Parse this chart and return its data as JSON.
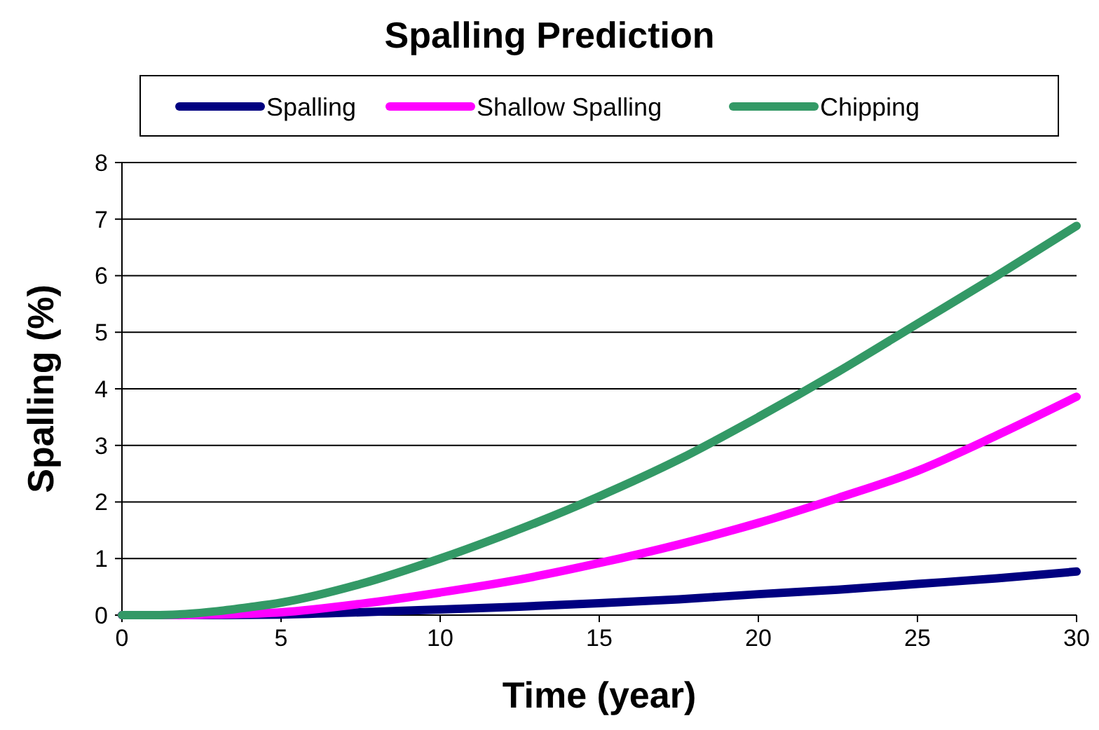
{
  "chart_data": {
    "type": "line",
    "title": "Spalling Prediction",
    "xlabel": "Time (year)",
    "ylabel": "Spalling (%)",
    "xlim": [
      0,
      30
    ],
    "xticks": [
      0,
      5,
      10,
      15,
      20,
      25,
      30
    ],
    "ylim": [
      0,
      8
    ],
    "yticks": [
      0,
      1,
      2,
      3,
      4,
      5,
      6,
      7,
      8
    ],
    "grid": "y",
    "legend": "top",
    "line_style": "solid",
    "series": [
      {
        "name": "Spalling",
        "color": "#000080",
        "x": [
          0,
          3,
          5,
          7.5,
          10,
          12.5,
          15,
          17.5,
          20,
          22.5,
          25,
          27.5,
          30
        ],
        "values": [
          0,
          0,
          0.01,
          0.05,
          0.1,
          0.15,
          0.21,
          0.28,
          0.37,
          0.45,
          0.55,
          0.65,
          0.77
        ]
      },
      {
        "name": "Shallow Spalling",
        "color": "#ff00ff",
        "x": [
          0,
          2,
          3,
          5,
          7.5,
          10,
          12.5,
          15,
          17.5,
          20,
          22.5,
          25,
          27.5,
          30
        ],
        "values": [
          0,
          0,
          0.01,
          0.05,
          0.2,
          0.4,
          0.63,
          0.92,
          1.25,
          1.63,
          2.07,
          2.55,
          3.18,
          3.86
        ]
      },
      {
        "name": "Chipping",
        "color": "#339966",
        "x": [
          0,
          1,
          2,
          3,
          4,
          5,
          7.5,
          10,
          12.5,
          15,
          17.5,
          20,
          22.5,
          25,
          27.5,
          30
        ],
        "values": [
          0,
          0,
          0.02,
          0.07,
          0.14,
          0.22,
          0.55,
          1.0,
          1.52,
          2.1,
          2.75,
          3.5,
          4.3,
          5.15,
          6.0,
          6.88
        ]
      }
    ]
  }
}
